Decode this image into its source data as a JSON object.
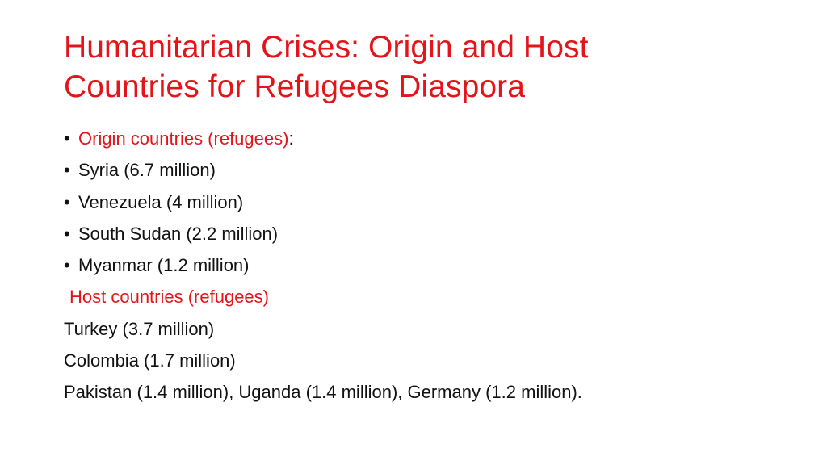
{
  "slide": {
    "title_lines": [
      "Humanitarian Crises: Origin and Host",
      "Countries for Refugees Diaspora"
    ],
    "origin_heading": "Origin countries (refugees)",
    "origin_heading_suffix": ":",
    "origin_items": [
      "Syria (6.7 million)",
      "Venezuela (4 million)",
      "South Sudan (2.2 million)",
      "Myanmar (1.2 million)"
    ],
    "host_heading": "Host countries (refugees)",
    "host_items": [
      "Turkey (3.7 million)",
      "Colombia (1.7 million)",
      "Pakistan (1.4 million), Uganda (1.4 million), Germany (1.2 million)."
    ],
    "bullet_glyph": "•",
    "colors": {
      "accent": "#e3151a",
      "text": "#111111",
      "background": "#ffffff"
    }
  }
}
